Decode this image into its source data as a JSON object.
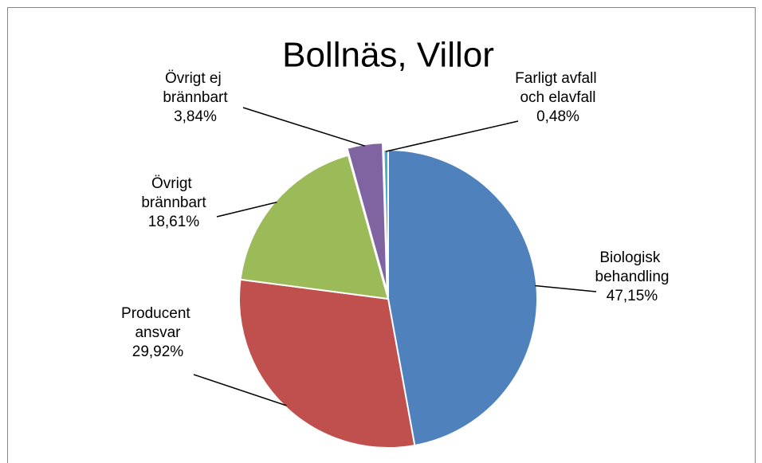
{
  "chart_data": {
    "type": "pie",
    "title": "Bollnäs, Villor",
    "categories": [
      "Biologisk behandling",
      "Producent ansvar",
      "Övrigt brännbart",
      "Övrigt ej brännbart",
      "Farligt avfall och elavfall"
    ],
    "values": [
      47.15,
      29.92,
      18.61,
      3.84,
      0.48
    ],
    "value_labels": [
      "47,15%",
      "29,92%",
      "18,61%",
      "3,84%",
      "0,48%"
    ],
    "colors": [
      "#4f81bd",
      "#c0504d",
      "#9bbb59",
      "#8064a2",
      "#4bacc6"
    ],
    "exploded": [
      false,
      false,
      false,
      true,
      false
    ]
  }
}
